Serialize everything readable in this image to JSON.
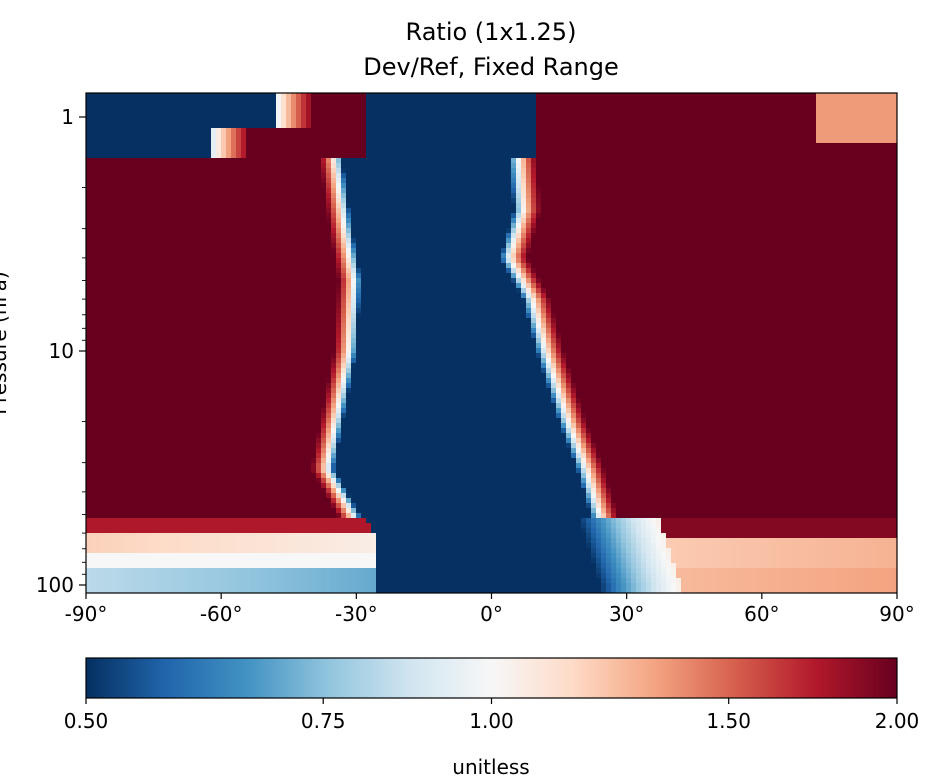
{
  "chart_data": {
    "type": "heatmap",
    "title": "Ratio (1x1.25)",
    "subtitle": "Dev/Ref, Fixed Range",
    "xlabel": "",
    "ylabel": "Pressure (hPa)",
    "x_range": [
      -90,
      90
    ],
    "y_range": [
      1,
      100
    ],
    "y_scale": "log",
    "y_inverted": true,
    "x_ticks": [
      "-90°",
      "-60°",
      "-30°",
      "0°",
      "30°",
      "60°",
      "90°"
    ],
    "x_tick_values": [
      -90,
      -60,
      -30,
      0,
      30,
      60,
      90
    ],
    "y_ticks": [
      "1",
      "10",
      "100"
    ],
    "y_tick_values": [
      1,
      10,
      100
    ],
    "colormap": "RdBu_r",
    "colorbar": {
      "label": "unitless",
      "ticks": [
        "0.50",
        "0.75",
        "1.00",
        "1.50",
        "2.00"
      ],
      "tick_values": [
        0.5,
        0.75,
        1.0,
        1.5,
        2.0
      ],
      "range": [
        0.5,
        2.0
      ],
      "colors": [
        "#053061",
        "#2166ac",
        "#4393c3",
        "#92c5de",
        "#d1e5f0",
        "#f7f7f7",
        "#fddbc7",
        "#f4a582",
        "#d6604d",
        "#b2182b",
        "#67001f"
      ]
    },
    "regions": [
      {
        "description_pressure": "1 to 85 hPa, south of ~-30°",
        "latitudes": [
          -88,
          -28
        ],
        "value": 2.0
      },
      {
        "description_pressure": "1 to 85 hPa, north of ~10°",
        "latitudes": [
          10,
          90
        ],
        "value": 2.0
      },
      {
        "description_pressure": "all levels, tropics",
        "latitudes": [
          -25,
          5
        ],
        "value": 0.5
      },
      {
        "description_pressure": "above 1.5 hPa, high latitudes",
        "latitudes": [
          -90,
          -40
        ],
        "value": 0.5
      },
      {
        "description_pressure": "60 to 100 hPa, southern band",
        "latitudes": [
          -90,
          -30
        ],
        "value": 0.8
      },
      {
        "description_pressure": "60 to 100 hPa, northern band",
        "latitudes": [
          40,
          90
        ],
        "value": 1.2
      }
    ]
  }
}
